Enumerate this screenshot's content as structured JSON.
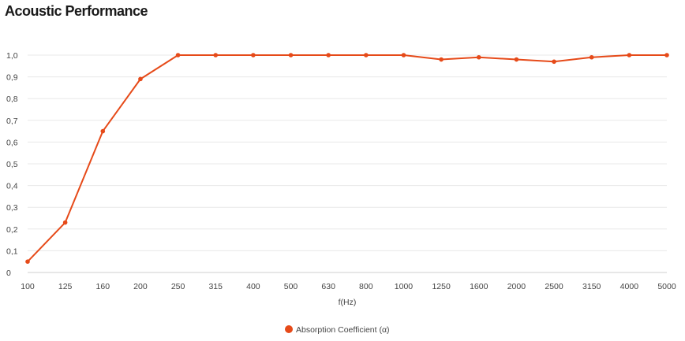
{
  "page": {
    "title": "Acoustic Performance"
  },
  "chart_data": {
    "type": "line",
    "title": "Acoustic Performance",
    "xlabel": "f(Hz)",
    "ylabel": "",
    "categories": [
      "100",
      "125",
      "160",
      "200",
      "250",
      "315",
      "400",
      "500",
      "630",
      "800",
      "1000",
      "1250",
      "1600",
      "2000",
      "2500",
      "3150",
      "4000",
      "5000"
    ],
    "series": [
      {
        "name": "Absorption Coefficient (α)",
        "color": "#e64a19",
        "values": [
          0.05,
          0.23,
          0.65,
          0.89,
          1.0,
          1.0,
          1.0,
          1.0,
          1.0,
          1.0,
          1.0,
          0.98,
          0.99,
          0.98,
          0.97,
          0.99,
          1.0,
          1.0
        ]
      }
    ],
    "ylim": [
      0,
      1.0
    ],
    "yticks": [
      "0",
      "0,1",
      "0,2",
      "0,3",
      "0,4",
      "0,5",
      "0,6",
      "0,7",
      "0,8",
      "0,9",
      "1,0"
    ],
    "grid": true,
    "legend_position": "bottom"
  }
}
